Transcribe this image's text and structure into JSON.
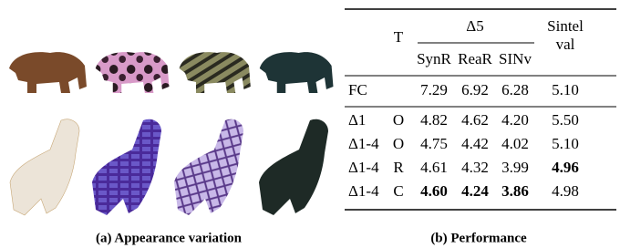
{
  "left_panel": {
    "caption": "(a) Appearance variation"
  },
  "right_panel": {
    "caption": "(b) Performance",
    "table": {
      "header": {
        "t": "T",
        "group": "Δ5",
        "columns": [
          "SynR",
          "ReaR",
          "SINv"
        ],
        "last_top": "Sintel",
        "last_bottom": "val"
      },
      "baseline": {
        "label": "FC",
        "cells": [
          "7.29",
          "6.92",
          "6.28",
          "5.10"
        ]
      },
      "rows": [
        {
          "label": "Δ1",
          "t": "O",
          "cells": [
            "4.82",
            "4.62",
            "4.20",
            "5.50"
          ],
          "bold": [
            false,
            false,
            false,
            false
          ]
        },
        {
          "label": "Δ1-4",
          "t": "O",
          "cells": [
            "4.75",
            "4.42",
            "4.02",
            "5.10"
          ],
          "bold": [
            false,
            false,
            false,
            false
          ]
        },
        {
          "label": "Δ1-4",
          "t": "R",
          "cells": [
            "4.61",
            "4.32",
            "3.99",
            "4.96"
          ],
          "bold": [
            false,
            false,
            false,
            true
          ]
        },
        {
          "label": "Δ1-4",
          "t": "C",
          "cells": [
            "4.60",
            "4.24",
            "3.86",
            "4.98"
          ],
          "bold": [
            true,
            true,
            true,
            false
          ]
        }
      ]
    }
  }
}
